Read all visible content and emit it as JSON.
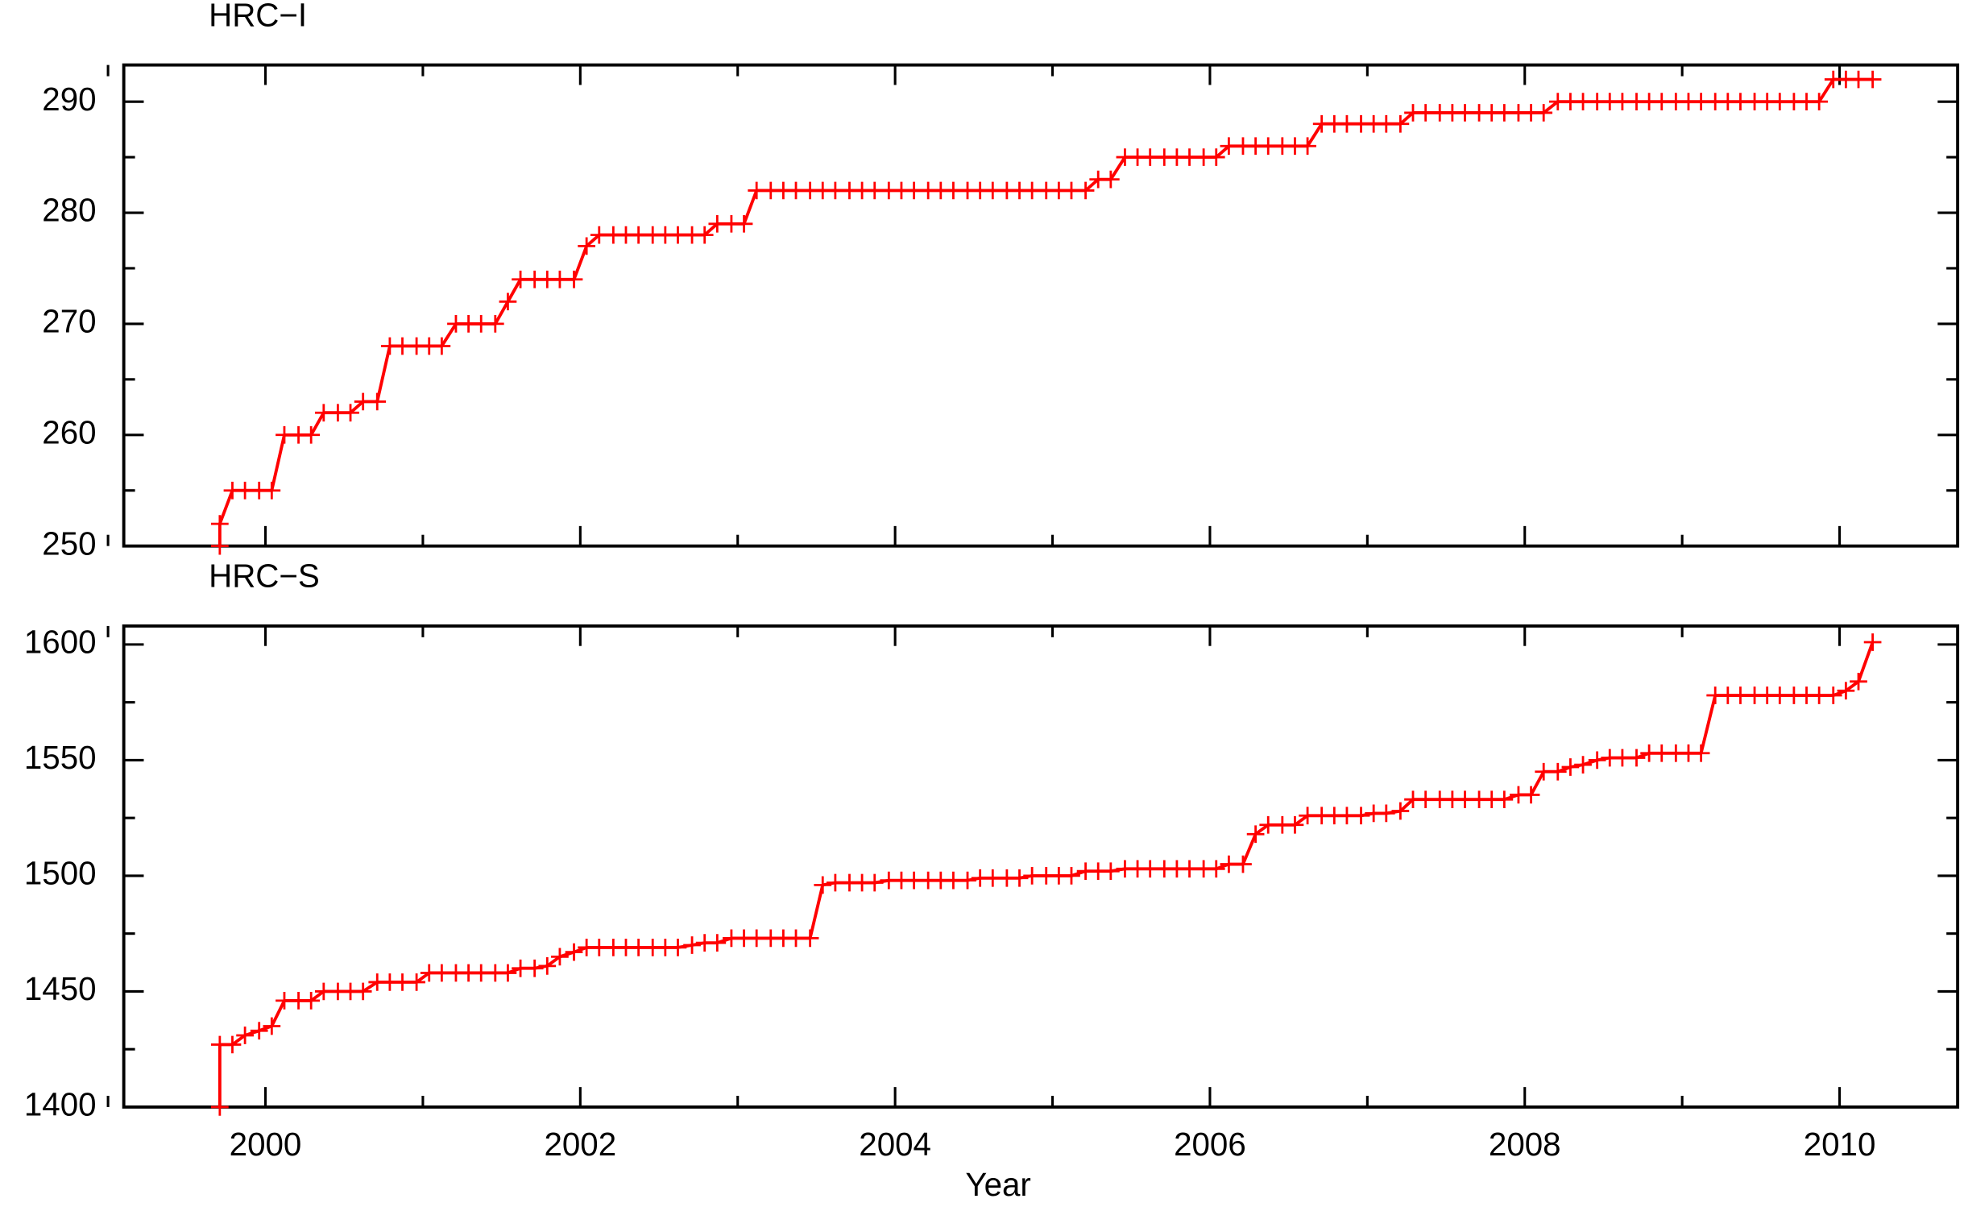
{
  "chart_data": [
    {
      "type": "line",
      "title": "HRC−I",
      "color": "#ff0000",
      "marker": "plus",
      "show_xtick_labels": false,
      "xlim": [
        1999.1,
        2010.75
      ],
      "xticks": [
        2000,
        2002,
        2004,
        2006,
        2008,
        2010
      ],
      "xminorticks": [
        1999,
        2001,
        2003,
        2005,
        2007,
        2009
      ],
      "ylim": [
        250,
        293.3
      ],
      "yticks": [
        250,
        260,
        270,
        280,
        290
      ],
      "yminorticks": [
        255,
        265,
        275,
        285
      ],
      "x": [
        1999.71,
        1999.71,
        1999.79,
        1999.87,
        1999.96,
        2000.04,
        2000.12,
        2000.21,
        2000.29,
        2000.37,
        2000.46,
        2000.54,
        2000.62,
        2000.71,
        2000.79,
        2000.87,
        2000.96,
        2001.04,
        2001.12,
        2001.21,
        2001.29,
        2001.37,
        2001.46,
        2001.54,
        2001.62,
        2001.71,
        2001.79,
        2001.87,
        2001.96,
        2002.04,
        2002.12,
        2002.21,
        2002.29,
        2002.37,
        2002.46,
        2002.54,
        2002.62,
        2002.71,
        2002.79,
        2002.87,
        2002.96,
        2003.04,
        2003.12,
        2003.21,
        2003.29,
        2003.37,
        2003.46,
        2003.54,
        2003.62,
        2003.71,
        2003.79,
        2003.87,
        2003.96,
        2004.04,
        2004.12,
        2004.21,
        2004.29,
        2004.37,
        2004.46,
        2004.54,
        2004.62,
        2004.71,
        2004.79,
        2004.87,
        2004.96,
        2005.04,
        2005.12,
        2005.21,
        2005.29,
        2005.37,
        2005.46,
        2005.54,
        2005.62,
        2005.71,
        2005.79,
        2005.87,
        2005.96,
        2006.04,
        2006.12,
        2006.21,
        2006.29,
        2006.37,
        2006.46,
        2006.54,
        2006.62,
        2006.71,
        2006.79,
        2006.87,
        2006.96,
        2007.04,
        2007.12,
        2007.21,
        2007.29,
        2007.37,
        2007.46,
        2007.54,
        2007.62,
        2007.71,
        2007.79,
        2007.87,
        2007.96,
        2008.04,
        2008.12,
        2008.21,
        2008.29,
        2008.37,
        2008.46,
        2008.54,
        2008.62,
        2008.71,
        2008.79,
        2008.87,
        2008.96,
        2009.04,
        2009.12,
        2009.21,
        2009.29,
        2009.37,
        2009.46,
        2009.54,
        2009.62,
        2009.71,
        2009.79,
        2009.87,
        2009.96,
        2010.04,
        2010.12,
        2010.21
      ],
      "values": [
        250,
        252,
        255,
        255,
        255,
        255,
        260,
        260,
        260,
        262,
        262,
        262,
        263,
        263,
        268,
        268,
        268,
        268,
        268,
        270,
        270,
        270,
        270,
        272,
        274,
        274,
        274,
        274,
        274,
        277,
        278,
        278,
        278,
        278,
        278,
        278,
        278,
        278,
        278,
        279,
        279,
        279,
        282,
        282,
        282,
        282,
        282,
        282,
        282,
        282,
        282,
        282,
        282,
        282,
        282,
        282,
        282,
        282,
        282,
        282,
        282,
        282,
        282,
        282,
        282,
        282,
        282,
        282,
        283,
        283,
        285,
        285,
        285,
        285,
        285,
        285,
        285,
        285,
        286,
        286,
        286,
        286,
        286,
        286,
        286,
        288,
        288,
        288,
        288,
        288,
        288,
        288,
        289,
        289,
        289,
        289,
        289,
        289,
        289,
        289,
        289,
        289,
        289,
        290,
        290,
        290,
        290,
        290,
        290,
        290,
        290,
        290,
        290,
        290,
        290,
        290,
        290,
        290,
        290,
        290,
        290,
        290,
        290,
        290,
        292,
        292,
        292,
        292
      ]
    },
    {
      "type": "line",
      "title": "HRC−S",
      "xlabel": "Year",
      "color": "#ff0000",
      "marker": "plus",
      "show_xtick_labels": true,
      "xlim": [
        1999.1,
        2010.75
      ],
      "xticks": [
        2000,
        2002,
        2004,
        2006,
        2008,
        2010
      ],
      "xminorticks": [
        1999,
        2001,
        2003,
        2005,
        2007,
        2009
      ],
      "ylim": [
        1400,
        1608
      ],
      "yticks": [
        1400,
        1450,
        1500,
        1550,
        1600
      ],
      "yminorticks": [
        1425,
        1475,
        1525,
        1575
      ],
      "x": [
        1999.71,
        1999.71,
        1999.79,
        1999.87,
        1999.96,
        2000.04,
        2000.12,
        2000.21,
        2000.29,
        2000.37,
        2000.46,
        2000.54,
        2000.62,
        2000.71,
        2000.79,
        2000.87,
        2000.96,
        2001.04,
        2001.12,
        2001.21,
        2001.29,
        2001.37,
        2001.46,
        2001.54,
        2001.62,
        2001.71,
        2001.79,
        2001.87,
        2001.96,
        2002.04,
        2002.12,
        2002.21,
        2002.29,
        2002.37,
        2002.46,
        2002.54,
        2002.62,
        2002.71,
        2002.79,
        2002.87,
        2002.96,
        2003.04,
        2003.12,
        2003.21,
        2003.29,
        2003.37,
        2003.46,
        2003.54,
        2003.62,
        2003.71,
        2003.79,
        2003.87,
        2003.96,
        2004.04,
        2004.12,
        2004.21,
        2004.29,
        2004.37,
        2004.46,
        2004.54,
        2004.62,
        2004.71,
        2004.79,
        2004.87,
        2004.96,
        2005.04,
        2005.12,
        2005.21,
        2005.29,
        2005.37,
        2005.46,
        2005.54,
        2005.62,
        2005.71,
        2005.79,
        2005.87,
        2005.96,
        2006.04,
        2006.12,
        2006.21,
        2006.29,
        2006.37,
        2006.46,
        2006.54,
        2006.62,
        2006.71,
        2006.79,
        2006.87,
        2006.96,
        2007.04,
        2007.12,
        2007.21,
        2007.29,
        2007.37,
        2007.46,
        2007.54,
        2007.62,
        2007.71,
        2007.79,
        2007.87,
        2007.96,
        2008.04,
        2008.12,
        2008.21,
        2008.29,
        2008.37,
        2008.46,
        2008.54,
        2008.62,
        2008.71,
        2008.79,
        2008.87,
        2008.96,
        2009.04,
        2009.12,
        2009.21,
        2009.29,
        2009.37,
        2009.46,
        2009.54,
        2009.62,
        2009.71,
        2009.79,
        2009.87,
        2009.96,
        2010.04,
        2010.12,
        2010.21
      ],
      "values": [
        1400,
        1427,
        1427,
        1431,
        1433,
        1435,
        1446,
        1446,
        1446,
        1450,
        1450,
        1450,
        1450,
        1454,
        1454,
        1454,
        1454,
        1458,
        1458,
        1458,
        1458,
        1458,
        1458,
        1458,
        1460,
        1460,
        1461,
        1465,
        1467,
        1469,
        1469,
        1469,
        1469,
        1469,
        1469,
        1469,
        1469,
        1470,
        1471,
        1471,
        1473,
        1473,
        1473,
        1473,
        1473,
        1473,
        1473,
        1496,
        1497,
        1497,
        1497,
        1497,
        1498,
        1498,
        1498,
        1498,
        1498,
        1498,
        1498,
        1499,
        1499,
        1499,
        1499,
        1500,
        1500,
        1500,
        1500,
        1502,
        1502,
        1502,
        1503,
        1503,
        1503,
        1503,
        1503,
        1503,
        1503,
        1503,
        1505,
        1505,
        1518,
        1522,
        1522,
        1522,
        1526,
        1526,
        1526,
        1526,
        1526,
        1527,
        1527,
        1528,
        1533,
        1533,
        1533,
        1533,
        1533,
        1533,
        1533,
        1533,
        1535,
        1535,
        1545,
        1545,
        1547,
        1548,
        1550,
        1551,
        1551,
        1551,
        1553,
        1553,
        1553,
        1553,
        1553,
        1578,
        1578,
        1578,
        1578,
        1578,
        1578,
        1578,
        1578,
        1578,
        1578,
        1580,
        1584,
        1601
      ]
    }
  ]
}
